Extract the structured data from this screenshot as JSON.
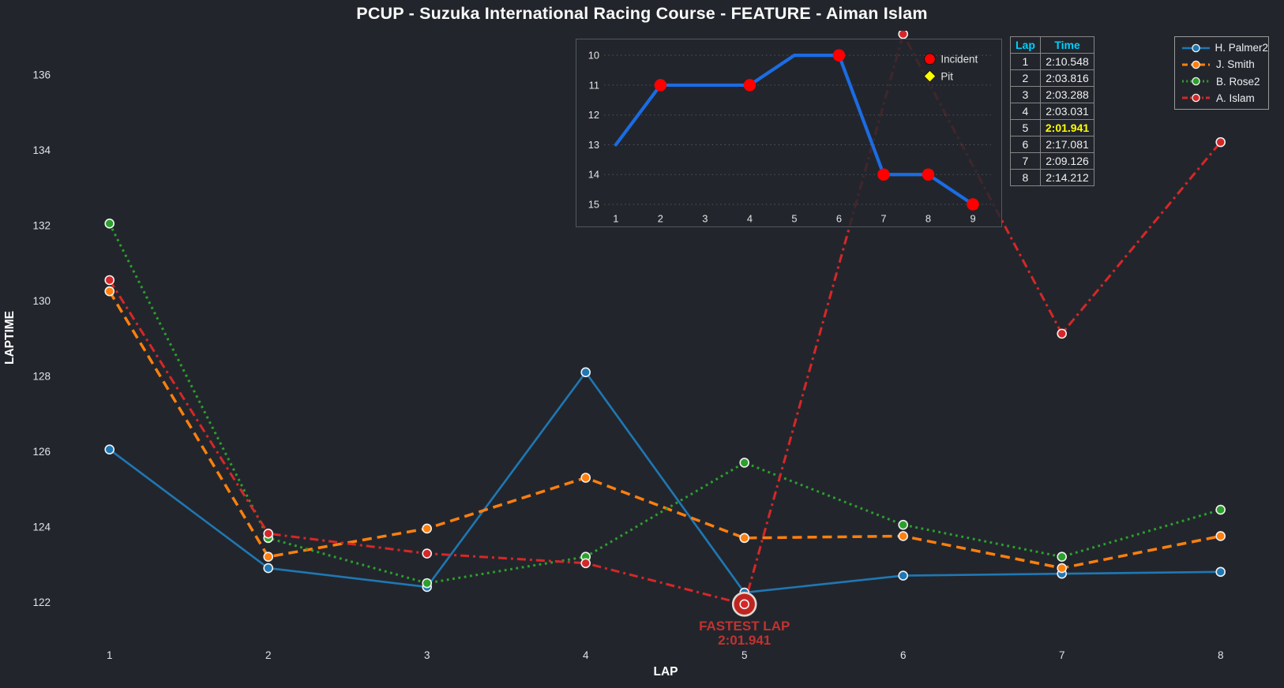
{
  "title": "PCUP - Suzuka International Racing Course - FEATURE - Aiman Islam",
  "colors": {
    "background": "#22262c",
    "tick_text": "#dfe2e6",
    "axis_label": "#ffffff",
    "marker_edge": "#f2f2f2",
    "grid": "#8a8f96",
    "incident_red": "#fe0000",
    "pit_yellow": "#ffff00",
    "table_header_cyan": "#00cfff",
    "fastest_yellow": "#ffff00",
    "annotation_red": "#c23230",
    "fastest_ring": "#ded9d3",
    "fastest_fill": "#bf2420",
    "inset_blue": "#1b6ce4",
    "inset_text": "#e4e4e4"
  },
  "chart_data": [
    {
      "type": "line",
      "name": "laptimes",
      "xlabel": "LAP",
      "ylabel": "LAPTIME",
      "x": [
        1,
        2,
        3,
        4,
        5,
        6,
        7,
        8
      ],
      "xticks": [
        1,
        2,
        3,
        4,
        5,
        6,
        7,
        8
      ],
      "yticks": [
        122,
        124,
        126,
        128,
        130,
        132,
        134,
        136
      ],
      "ylim": [
        121.1,
        137.2
      ],
      "grid": false,
      "legend_position": "top-right",
      "series": [
        {
          "name": "H. Palmer2",
          "color": "#1f77b4",
          "style": "solid",
          "values": [
            126.05,
            122.9,
            122.4,
            128.1,
            122.25,
            122.7,
            122.75,
            122.8
          ]
        },
        {
          "name": "J. Smith",
          "color": "#ff7f0e",
          "style": "dashed",
          "values": [
            130.25,
            123.2,
            123.95,
            125.3,
            123.7,
            123.75,
            122.9,
            123.75
          ]
        },
        {
          "name": "B. Rose2",
          "color": "#2ca02c",
          "style": "dotted",
          "values": [
            132.05,
            123.7,
            122.5,
            123.2,
            125.7,
            124.05,
            123.2,
            124.45
          ]
        },
        {
          "name": "A. Islam",
          "color": "#d62728",
          "style": "dashdot",
          "values": [
            130.548,
            123.816,
            123.288,
            123.031,
            121.941,
            137.081,
            129.126,
            134.212
          ]
        }
      ],
      "fastest_lap": {
        "series": "A. Islam",
        "lap": 5,
        "value": 121.941,
        "label_line1": "FASTEST LAP",
        "label_line2": "2:01.941"
      }
    },
    {
      "type": "line",
      "name": "race-position",
      "x": [
        1,
        2,
        3,
        4,
        5,
        6,
        7,
        8,
        9
      ],
      "values": [
        13,
        11,
        11,
        11,
        10,
        10,
        14,
        14,
        15
      ],
      "xticks": [
        1,
        2,
        3,
        4,
        5,
        6,
        7,
        8,
        9
      ],
      "yticks": [
        10,
        11,
        12,
        13,
        14,
        15
      ],
      "y_inverted": true,
      "grid": "horizontal-dotted",
      "incident_laps": [
        2,
        4,
        6,
        7,
        8,
        9
      ],
      "pit_laps": [],
      "legend": [
        {
          "label": "Incident",
          "marker": "circle",
          "color": "#fe0000"
        },
        {
          "label": "Pit",
          "marker": "diamond",
          "color": "#ffff00"
        }
      ]
    }
  ],
  "lap_table": {
    "headers": [
      "Lap",
      "Time"
    ],
    "rows": [
      [
        "1",
        "2:10.548"
      ],
      [
        "2",
        "2:03.816"
      ],
      [
        "3",
        "2:03.288"
      ],
      [
        "4",
        "2:03.031"
      ],
      [
        "5",
        "2:01.941"
      ],
      [
        "6",
        "2:17.081"
      ],
      [
        "7",
        "2:09.126"
      ],
      [
        "8",
        "2:14.212"
      ]
    ],
    "fastest_row_index": 4
  }
}
